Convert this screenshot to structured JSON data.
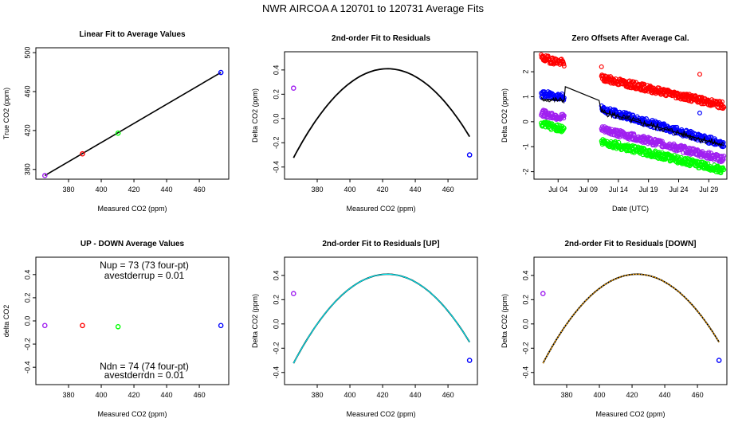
{
  "figure": {
    "title": "NWR   AIRCOA A   120701 to 120731   Average Fits"
  },
  "chart_data": [
    {
      "id": "p1",
      "type": "scatter",
      "title": "Linear Fit to Average Values",
      "xlabel": "Measured CO2 (ppm)",
      "ylabel": "True CO2 (ppm)",
      "xlim": [
        360,
        478
      ],
      "ylim": [
        370,
        505
      ],
      "xticks": [
        380,
        400,
        420,
        440,
        460
      ],
      "yticks": [
        380,
        420,
        460,
        500
      ],
      "points": [
        {
          "x": 365.5,
          "y": 373.7,
          "color": "#a020f0"
        },
        {
          "x": 388.5,
          "y": 396.0,
          "color": "#ff0000"
        },
        {
          "x": 410.3,
          "y": 417.3,
          "color": "#00ff00"
        },
        {
          "x": 473.2,
          "y": 479.6,
          "color": "#0000ff"
        }
      ],
      "line": {
        "x": [
          365.5,
          473.2
        ],
        "y": [
          373.7,
          479.6
        ],
        "color": "#000000"
      }
    },
    {
      "id": "p2",
      "type": "scatter",
      "title": "2nd-order Fit to Residuals",
      "xlabel": "Measured CO2 (ppm)",
      "ylabel": "Delta CO2 (ppm)",
      "xlim": [
        360,
        478
      ],
      "ylim": [
        -0.5,
        0.55
      ],
      "xticks": [
        380,
        400,
        420,
        440,
        460
      ],
      "yticks": [
        -0.4,
        -0.2,
        0.0,
        0.2,
        0.4
      ],
      "points": [
        {
          "x": 365.5,
          "y": 0.25,
          "color": "#a020f0"
        },
        {
          "x": 473.2,
          "y": -0.3,
          "color": "#0000ff"
        }
      ],
      "curve": {
        "vertex_x": 423,
        "vertex_y": 0.41,
        "a": -0.000222,
        "x_range": [
          365.5,
          473.2
        ],
        "color": "#000000"
      }
    },
    {
      "id": "p3",
      "type": "scatter",
      "title": "Zero Offsets After Average Cal.",
      "xlabel": "Date (UTC)",
      "ylabel": "Delta CO2 (ppm)",
      "xlim": [
        0,
        32
      ],
      "ylim": [
        -2.3,
        2.8
      ],
      "xticks": [
        4,
        9,
        14,
        19,
        24,
        29
      ],
      "xticklabels": [
        "Jul 04",
        "Jul 09",
        "Jul 14",
        "Jul 19",
        "Jul 24",
        "Jul 29"
      ],
      "yticks": [
        -2,
        -1,
        0,
        1,
        2
      ],
      "series": [
        {
          "name": "red",
          "color": "#ff0000",
          "segments": [
            {
              "x": [
                1.2,
                5.0
              ],
              "y": [
                2.55,
                2.35
              ]
            },
            {
              "x": [
                11.2,
                31.5
              ],
              "y": [
                1.75,
                0.65
              ]
            }
          ]
        },
        {
          "name": "blue",
          "color": "#0000ff",
          "segments": [
            {
              "x": [
                1.2,
                5.0
              ],
              "y": [
                1.1,
                1.0
              ]
            },
            {
              "x": [
                11.2,
                31.5
              ],
              "y": [
                0.5,
                -0.9
              ]
            }
          ]
        },
        {
          "name": "purple",
          "color": "#a020f0",
          "segments": [
            {
              "x": [
                1.2,
                5.0
              ],
              "y": [
                0.35,
                0.15
              ]
            },
            {
              "x": [
                11.2,
                31.5
              ],
              "y": [
                -0.3,
                -1.5
              ]
            }
          ]
        },
        {
          "name": "green",
          "color": "#00ff00",
          "segments": [
            {
              "x": [
                1.2,
                5.0
              ],
              "y": [
                -0.1,
                -0.3
              ]
            },
            {
              "x": [
                11.2,
                31.5
              ],
              "y": [
                -0.8,
                -1.95
              ]
            }
          ]
        }
      ],
      "line": {
        "x": [
          1.2,
          5.0,
          5.2,
          10.8,
          11.2,
          31.5
        ],
        "y": [
          0.9,
          0.85,
          1.4,
          0.85,
          0.4,
          -0.95
        ],
        "color": "#000000"
      }
    },
    {
      "id": "p4",
      "type": "scatter",
      "title": "UP - DOWN Average Values",
      "xlabel": "Measured CO2 (ppm)",
      "ylabel": "delta CO2",
      "xlim": [
        360,
        478
      ],
      "ylim": [
        -0.55,
        0.55
      ],
      "xticks": [
        380,
        400,
        420,
        440,
        460
      ],
      "yticks": [
        -0.4,
        -0.2,
        0.0,
        0.2,
        0.4
      ],
      "points": [
        {
          "x": 365.5,
          "y": -0.04,
          "color": "#a020f0"
        },
        {
          "x": 388.5,
          "y": -0.04,
          "color": "#ff0000"
        },
        {
          "x": 410.3,
          "y": -0.05,
          "color": "#00ff00"
        },
        {
          "x": 473.2,
          "y": -0.04,
          "color": "#0000ff"
        }
      ],
      "annotations": [
        {
          "text": "Nup = 73 (73 four-pt)",
          "pos": "upper-center"
        },
        {
          "text": "avestderrup =  0.01",
          "pos": "upper-center-2"
        },
        {
          "text": "Ndn = 74 (74 four-pt)",
          "pos": "lower-center"
        },
        {
          "text": "avestderrdn =  0.01",
          "pos": "lower-center-2"
        }
      ]
    },
    {
      "id": "p5",
      "type": "scatter",
      "title": "2nd-order Fit to Residuals [UP]",
      "xlabel": "Measured CO2 (ppm)",
      "ylabel": "Delta CO2 (ppm)",
      "xlim": [
        360,
        478
      ],
      "ylim": [
        -0.5,
        0.55
      ],
      "xticks": [
        380,
        400,
        420,
        440,
        460
      ],
      "yticks": [
        -0.4,
        -0.2,
        0.0,
        0.2,
        0.4
      ],
      "points": [
        {
          "x": 365.5,
          "y": 0.25,
          "color": "#a020f0"
        },
        {
          "x": 473.2,
          "y": -0.3,
          "color": "#0000ff"
        }
      ],
      "curve": {
        "vertex_x": 423,
        "vertex_y": 0.41,
        "a": -0.000222,
        "x_range": [
          365.5,
          473.2
        ],
        "color": "#000000",
        "overlay_color": "#00e5ee"
      }
    },
    {
      "id": "p6",
      "type": "scatter",
      "title": "2nd-order Fit to Residuals [DOWN]",
      "xlabel": "Measured CO2 (ppm)",
      "ylabel": "Delta CO2 (ppm)",
      "xlim": [
        360,
        478
      ],
      "ylim": [
        -0.5,
        0.55
      ],
      "xticks": [
        380,
        400,
        420,
        440,
        460
      ],
      "yticks": [
        -0.4,
        -0.2,
        0.0,
        0.2,
        0.4
      ],
      "points": [
        {
          "x": 365.5,
          "y": 0.25,
          "color": "#a020f0"
        },
        {
          "x": 473.2,
          "y": -0.3,
          "color": "#0000ff"
        }
      ],
      "curve": {
        "vertex_x": 423,
        "vertex_y": 0.41,
        "a": -0.000222,
        "x_range": [
          365.5,
          473.2
        ],
        "color": "#000000",
        "overlay_color": "#ffa500"
      }
    }
  ]
}
